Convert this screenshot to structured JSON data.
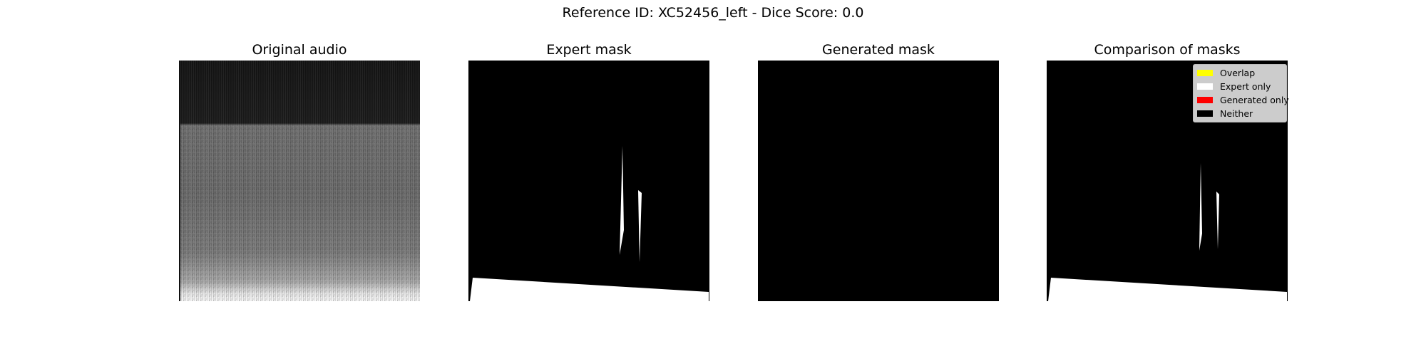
{
  "figure": {
    "suptitle": "Reference ID: XC52456_left - Dice Score: 0.0"
  },
  "panels": [
    {
      "title": "Original audio"
    },
    {
      "title": "Expert mask"
    },
    {
      "title": "Generated mask"
    },
    {
      "title": "Comparison of masks"
    }
  ],
  "legend": {
    "items": [
      {
        "label": "Overlap",
        "color": "#ffff00"
      },
      {
        "label": "Expert only",
        "color": "#ffffff"
      },
      {
        "label": "Generated only",
        "color": "#ff0000"
      },
      {
        "label": "Neither",
        "color": "#000000"
      }
    ]
  },
  "colors": {
    "mask_background": "#000000",
    "mask_foreground": "#ffffff"
  }
}
